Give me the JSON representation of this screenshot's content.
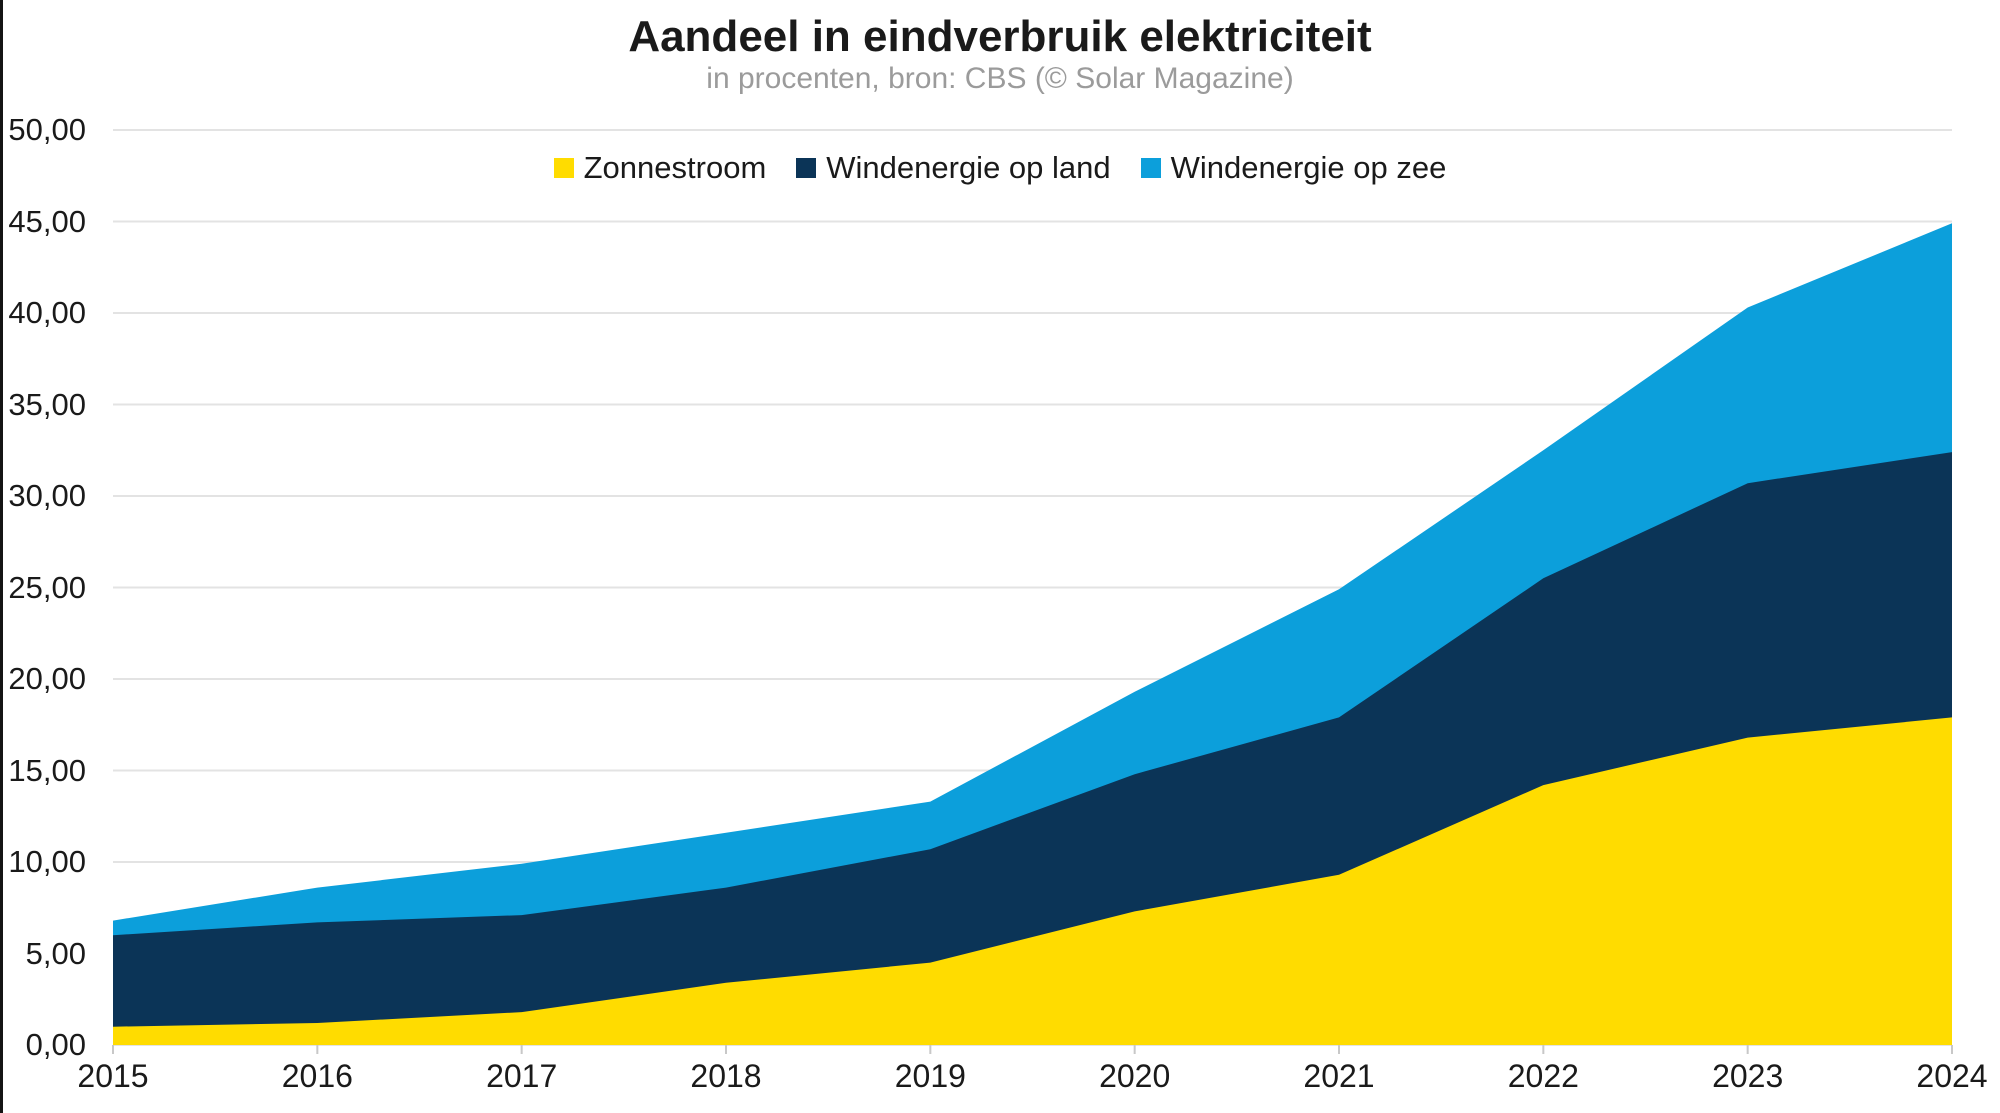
{
  "header": {
    "title": "Aandeel in eindverbruik elektriciteit",
    "subtitle": "in procenten, bron: CBS (© Solar Magazine)"
  },
  "chart_data": {
    "type": "area",
    "stacked": true,
    "title": "Aandeel in eindverbruik elektriciteit",
    "subtitle": "in procenten, bron: CBS (© Solar Magazine)",
    "categories": [
      "2015",
      "2016",
      "2017",
      "2018",
      "2019",
      "2020",
      "2021",
      "2022",
      "2023",
      "2024"
    ],
    "series": [
      {
        "name": "Zonnestroom",
        "color": "#FFDC00",
        "values": [
          1.0,
          1.2,
          1.8,
          3.4,
          4.5,
          7.3,
          9.3,
          14.2,
          16.8,
          17.9
        ]
      },
      {
        "name": "Windenergie op land",
        "color": "#0B3457",
        "values": [
          5.0,
          5.5,
          5.3,
          5.2,
          6.2,
          7.5,
          8.6,
          11.3,
          13.9,
          14.5
        ]
      },
      {
        "name": "Windenergie op zee",
        "color": "#0C9FDB",
        "values": [
          0.8,
          1.9,
          2.8,
          3.0,
          2.6,
          4.5,
          7.0,
          7.0,
          9.6,
          12.5
        ]
      }
    ],
    "stacked_totals": [
      6.8,
      8.6,
      9.9,
      11.6,
      13.3,
      19.3,
      24.9,
      32.5,
      40.3,
      44.9
    ],
    "xlabel": "",
    "ylabel": "",
    "ylim": [
      0,
      50
    ],
    "y_tick_step": 5,
    "y_tick_labels": [
      "0,00",
      "5,00",
      "10,00",
      "15,00",
      "20,00",
      "25,00",
      "30,00",
      "35,00",
      "40,00",
      "45,00",
      "50,00"
    ],
    "grid": true,
    "legend_position": "top-center",
    "gridline_color": "#e3e3e3",
    "axis_tick_color": "#c8c8c8",
    "text_color": "#1a1a1a",
    "subtitle_color": "#9b9b9b",
    "background_color": "#ffffff",
    "left_border_color": "#141414"
  }
}
